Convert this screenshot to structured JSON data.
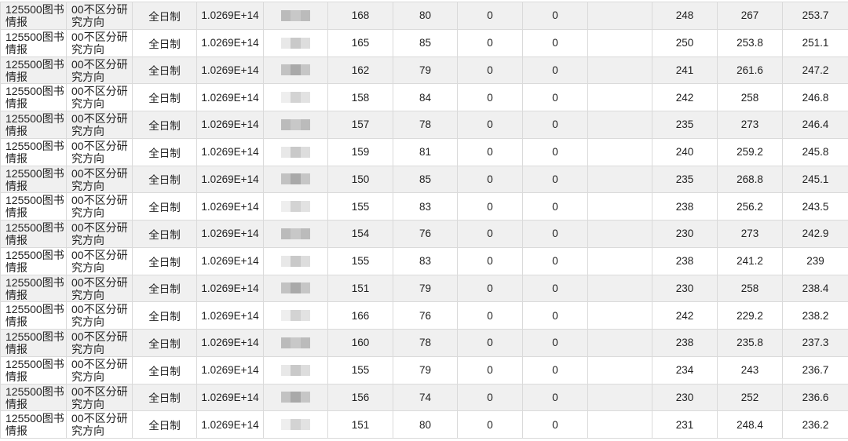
{
  "common": {
    "major": "125500图书情报",
    "direction": "00不区分研究方向",
    "mode": "全日制",
    "id": "1.0269E+14"
  },
  "rows": [
    {
      "c1": "168",
      "c2": "80",
      "c3": "0",
      "c4": "0",
      "c5": "",
      "c6": "248",
      "c7": "267",
      "c8": "253.7"
    },
    {
      "c1": "165",
      "c2": "85",
      "c3": "0",
      "c4": "0",
      "c5": "",
      "c6": "250",
      "c7": "253.8",
      "c8": "251.1"
    },
    {
      "c1": "162",
      "c2": "79",
      "c3": "0",
      "c4": "0",
      "c5": "",
      "c6": "241",
      "c7": "261.6",
      "c8": "247.2"
    },
    {
      "c1": "158",
      "c2": "84",
      "c3": "0",
      "c4": "0",
      "c5": "",
      "c6": "242",
      "c7": "258",
      "c8": "246.8"
    },
    {
      "c1": "157",
      "c2": "78",
      "c3": "0",
      "c4": "0",
      "c5": "",
      "c6": "235",
      "c7": "273",
      "c8": "246.4"
    },
    {
      "c1": "159",
      "c2": "81",
      "c3": "0",
      "c4": "0",
      "c5": "",
      "c6": "240",
      "c7": "259.2",
      "c8": "245.8"
    },
    {
      "c1": "150",
      "c2": "85",
      "c3": "0",
      "c4": "0",
      "c5": "",
      "c6": "235",
      "c7": "268.8",
      "c8": "245.1"
    },
    {
      "c1": "155",
      "c2": "83",
      "c3": "0",
      "c4": "0",
      "c5": "",
      "c6": "238",
      "c7": "256.2",
      "c8": "243.5"
    },
    {
      "c1": "154",
      "c2": "76",
      "c3": "0",
      "c4": "0",
      "c5": "",
      "c6": "230",
      "c7": "273",
      "c8": "242.9"
    },
    {
      "c1": "155",
      "c2": "83",
      "c3": "0",
      "c4": "0",
      "c5": "",
      "c6": "238",
      "c7": "241.2",
      "c8": "239"
    },
    {
      "c1": "151",
      "c2": "79",
      "c3": "0",
      "c4": "0",
      "c5": "",
      "c6": "230",
      "c7": "258",
      "c8": "238.4"
    },
    {
      "c1": "166",
      "c2": "76",
      "c3": "0",
      "c4": "0",
      "c5": "",
      "c6": "242",
      "c7": "229.2",
      "c8": "238.2"
    },
    {
      "c1": "160",
      "c2": "78",
      "c3": "0",
      "c4": "0",
      "c5": "",
      "c6": "238",
      "c7": "235.8",
      "c8": "237.3"
    },
    {
      "c1": "155",
      "c2": "79",
      "c3": "0",
      "c4": "0",
      "c5": "",
      "c6": "234",
      "c7": "243",
      "c8": "236.7"
    },
    {
      "c1": "156",
      "c2": "74",
      "c3": "0",
      "c4": "0",
      "c5": "",
      "c6": "230",
      "c7": "252",
      "c8": "236.6"
    },
    {
      "c1": "151",
      "c2": "80",
      "c3": "0",
      "c4": "0",
      "c5": "",
      "c6": "231",
      "c7": "248.4",
      "c8": "236.2"
    }
  ]
}
